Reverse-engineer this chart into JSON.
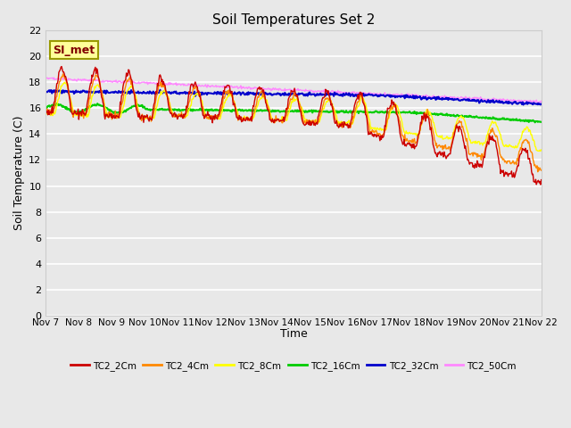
{
  "title": "Soil Temperatures Set 2",
  "xlabel": "Time",
  "ylabel": "Soil Temperature (C)",
  "ylim": [
    0,
    22
  ],
  "yticks": [
    0,
    2,
    4,
    6,
    8,
    10,
    12,
    14,
    16,
    18,
    20,
    22
  ],
  "x_labels": [
    "Nov 7",
    "Nov 8",
    "Nov 9",
    "Nov 10",
    "Nov 11",
    "Nov 12",
    "Nov 13",
    "Nov 14",
    "Nov 15",
    "Nov 16",
    "Nov 17",
    "Nov 18",
    "Nov 19",
    "Nov 20",
    "Nov 21",
    "Nov 22"
  ],
  "bg_color": "#e8e8e8",
  "plot_bg_color": "#e8e8e8",
  "grid_color": "#ffffff",
  "annotation_text": "SI_met",
  "annotation_bg": "#ffff99",
  "annotation_border": "#999900",
  "legend_labels": [
    "TC2_2Cm",
    "TC2_4Cm",
    "TC2_8Cm",
    "TC2_16Cm",
    "TC2_32Cm",
    "TC2_50Cm"
  ],
  "line_colors": [
    "#cc0000",
    "#ff8800",
    "#ffff00",
    "#00cc00",
    "#0000cc",
    "#ff88ff"
  ],
  "line_widths": [
    1.0,
    1.0,
    1.0,
    1.5,
    1.5,
    1.0
  ],
  "num_points": 720
}
